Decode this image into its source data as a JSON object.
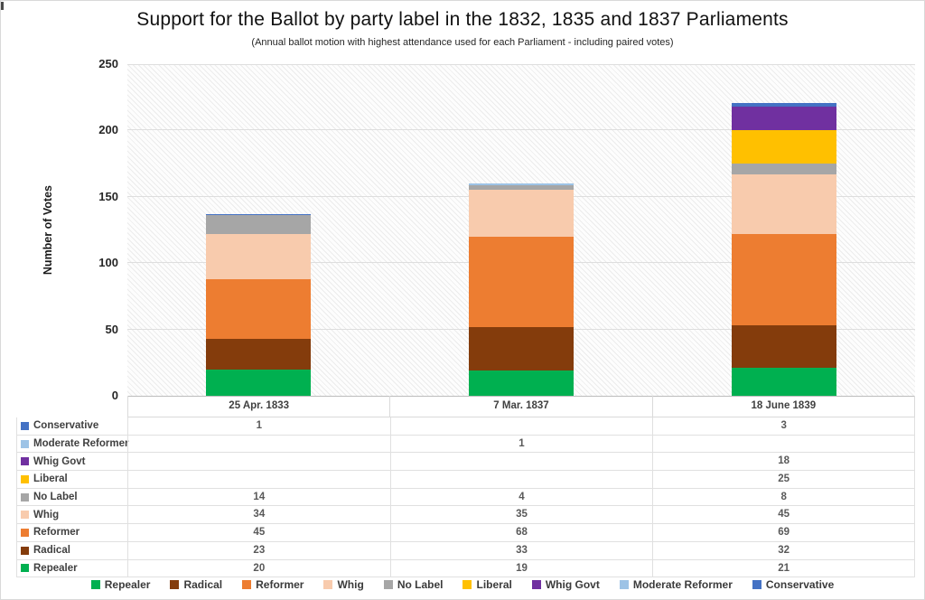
{
  "title": "Support for the Ballot by party label in the 1832, 1835 and 1837 Parliaments",
  "subtitle": "(Annual ballot motion with highest attendance used for each Parliament - including paired votes)",
  "chart_data": {
    "type": "bar",
    "stacked": true,
    "title": "Support for the Ballot by party label in the 1832, 1835 and 1837 Parliaments",
    "subtitle": "(Annual ballot motion with highest attendance used for each Parliament - including paired votes)",
    "categories": [
      "25 Apr. 1833",
      "7 Mar. 1837",
      "18 June 1839"
    ],
    "series": [
      {
        "name": "Repealer",
        "color": "#00B050",
        "values": [
          20,
          19,
          21
        ]
      },
      {
        "name": "Radical",
        "color": "#843C0C",
        "values": [
          23,
          33,
          32
        ]
      },
      {
        "name": "Reformer",
        "color": "#ED7D31",
        "values": [
          45,
          68,
          69
        ]
      },
      {
        "name": "Whig",
        "color": "#F8CBAD",
        "values": [
          34,
          35,
          45
        ]
      },
      {
        "name": "No Label",
        "color": "#A6A6A6",
        "values": [
          14,
          4,
          8
        ]
      },
      {
        "name": "Liberal",
        "color": "#FFC000",
        "values": [
          null,
          null,
          25
        ]
      },
      {
        "name": "Whig Govt",
        "color": "#7030A0",
        "values": [
          null,
          null,
          18
        ]
      },
      {
        "name": "Moderate Reformer",
        "color": "#9DC3E6",
        "values": [
          null,
          1,
          null
        ]
      },
      {
        "name": "Conservative",
        "color": "#4472C4",
        "values": [
          1,
          null,
          3
        ]
      }
    ],
    "totals": [
      137,
      160,
      221
    ],
    "xlabel": "",
    "ylabel": "Number of Votes",
    "ylim": [
      0,
      250
    ],
    "yticks": [
      0,
      50,
      100,
      150,
      200,
      250
    ],
    "grid": true,
    "plot_background": "diagonal-hatch",
    "legend_position": "bottom",
    "table_row_order": [
      "Conservative",
      "Moderate Reformer",
      "Whig Govt",
      "Liberal",
      "No Label",
      "Whig",
      "Reformer",
      "Radical",
      "Repealer"
    ]
  }
}
